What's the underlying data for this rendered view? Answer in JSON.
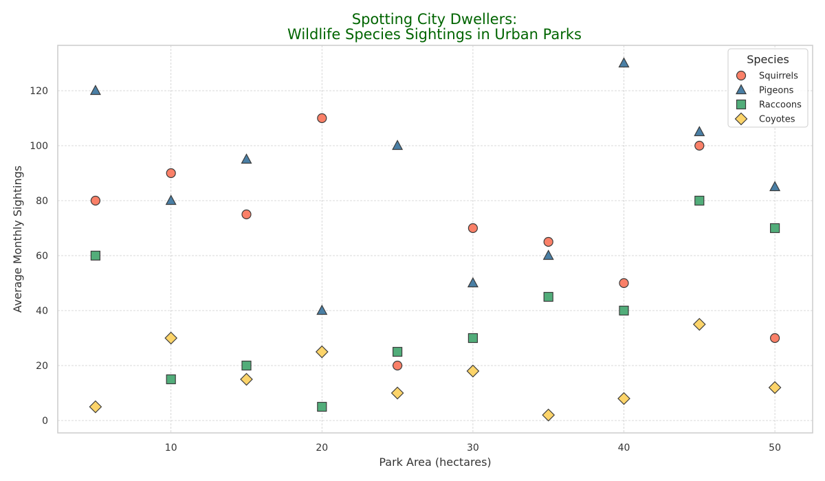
{
  "chart_data": {
    "type": "scatter",
    "title_lines": [
      "Spotting City Dwellers:",
      "Wildlife Species Sightings in Urban Parks"
    ],
    "xlabel": "Park Area (hectares)",
    "ylabel": "Average Monthly Sightings",
    "xlim": [
      2.5,
      52.5
    ],
    "ylim": [
      -4.5,
      136.5
    ],
    "xticks": [
      10,
      20,
      30,
      40,
      50
    ],
    "yticks": [
      0,
      20,
      40,
      60,
      80,
      100,
      120
    ],
    "grid": true,
    "legend": {
      "title": "Species",
      "placement": "top-right"
    },
    "x": [
      5,
      10,
      15,
      20,
      25,
      30,
      35,
      40,
      45,
      50
    ],
    "series": [
      {
        "name": "Squirrels",
        "marker": "circle",
        "color": "#fa8068",
        "values": [
          80,
          90,
          75,
          110,
          20,
          70,
          65,
          50,
          100,
          30
        ]
      },
      {
        "name": "Pigeons",
        "marker": "triangle",
        "color": "#4a7fa5",
        "values": [
          120,
          80,
          95,
          40,
          100,
          50,
          60,
          130,
          105,
          85
        ]
      },
      {
        "name": "Raccoons",
        "marker": "square",
        "color": "#52ad7a",
        "values": [
          60,
          15,
          20,
          5,
          25,
          30,
          45,
          40,
          80,
          70
        ]
      },
      {
        "name": "Coyotes",
        "marker": "diamond",
        "color": "#fcd46a",
        "values": [
          5,
          30,
          15,
          25,
          10,
          18,
          2,
          8,
          35,
          12
        ]
      }
    ],
    "marker_edge_color": "#3a3a3a"
  }
}
